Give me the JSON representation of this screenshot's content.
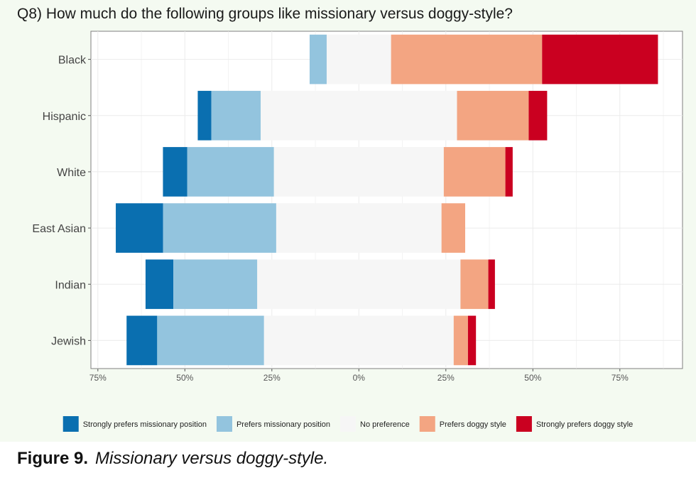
{
  "chart_data": {
    "type": "bar",
    "orientation": "horizontal",
    "stacking": "diverging",
    "title": "Q8) How much do the following groups like missionary versus doggy-style?",
    "xlabel": "",
    "ylabel": "",
    "xlim": [
      -77,
      93
    ],
    "x_ticks": [
      -75,
      -50,
      -25,
      0,
      25,
      50,
      75
    ],
    "x_tick_labels": [
      "75%",
      "50%",
      "25%",
      "0%",
      "25%",
      "50%",
      "75%"
    ],
    "grid": true,
    "legend_position": "bottom",
    "categories": [
      "Black",
      "Hispanic",
      "White",
      "East Asian",
      "Indian",
      "Jewish"
    ],
    "series": [
      {
        "name": "Strongly prefers missionary position",
        "color": "#0a6fb0",
        "values": [
          0,
          3.9,
          7.0,
          13.6,
          8.0,
          8.8
        ]
      },
      {
        "name": "Prefers missionary position",
        "color": "#93c4de",
        "values": [
          4.9,
          14.2,
          24.9,
          32.5,
          24.1,
          30.7
        ]
      },
      {
        "name": "No preference",
        "color": "#f6f6f6",
        "values": [
          18.5,
          56.4,
          48.8,
          47.5,
          58.4,
          54.5
        ]
      },
      {
        "name": "Prefers doggy style",
        "color": "#f3a582",
        "values": [
          43.4,
          20.6,
          17.7,
          6.8,
          8.0,
          4.1
        ]
      },
      {
        "name": "Strongly prefers doggy style",
        "color": "#ca0020",
        "values": [
          33.3,
          5.3,
          2.1,
          0,
          1.9,
          2.3
        ]
      }
    ]
  },
  "caption": {
    "label": "Figure 9.",
    "text": "Missionary versus doggy-style."
  }
}
